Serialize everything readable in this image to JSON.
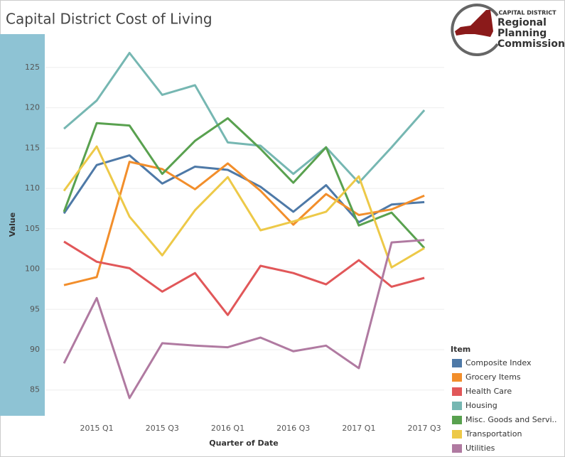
{
  "chart_data": {
    "type": "line",
    "title": "Capital District Cost of Living",
    "x_label": "Quarter of Date",
    "y_label": "Value",
    "categories": [
      null,
      "2015 Q1",
      null,
      "2015 Q3",
      null,
      "2016 Q1",
      null,
      "2016 Q3",
      null,
      "2017 Q1",
      null,
      "2017 Q3"
    ],
    "ylim": [
      81.8,
      129.4
    ],
    "yticks": [
      85,
      90,
      95,
      100,
      105,
      110,
      115,
      120,
      125
    ],
    "grid": true,
    "legend_title": "Item",
    "legend_position": "bottom-right",
    "series": [
      {
        "name": "Composite Index",
        "color": "#4e79a7",
        "values": [
          106.9,
          112.9,
          114.1,
          110.6,
          112.7,
          112.3,
          110.2,
          107.1,
          110.4,
          105.8,
          108.0,
          108.3
        ]
      },
      {
        "name": "Grocery Items",
        "color": "#f28e2b",
        "values": [
          98.0,
          99.0,
          113.3,
          112.4,
          109.9,
          113.1,
          109.7,
          105.5,
          109.3,
          106.7,
          107.4,
          109.1
        ]
      },
      {
        "name": "Health Care",
        "color": "#e15759",
        "values": [
          103.4,
          100.9,
          100.1,
          97.2,
          99.5,
          94.3,
          100.4,
          99.5,
          98.1,
          101.1,
          97.8,
          98.9
        ]
      },
      {
        "name": "Housing",
        "color": "#76b7b2",
        "values": [
          117.4,
          120.9,
          126.8,
          121.6,
          122.8,
          115.7,
          115.3,
          111.8,
          115.1,
          110.7,
          115.1,
          119.7
        ]
      },
      {
        "name": "Misc. Goods and Servi..",
        "color": "#59a14f",
        "values": [
          107.1,
          118.1,
          117.8,
          111.8,
          115.9,
          118.7,
          114.9,
          110.7,
          115.1,
          105.4,
          107.0,
          102.6
        ]
      },
      {
        "name": "Transportation",
        "color": "#edc948",
        "values": [
          109.7,
          115.2,
          106.5,
          101.7,
          107.3,
          111.4,
          104.8,
          105.9,
          107.1,
          111.5,
          100.2,
          102.6
        ]
      },
      {
        "name": "Utilities",
        "color": "#b07aa1",
        "values": [
          88.3,
          96.4,
          84.0,
          90.8,
          90.5,
          90.3,
          91.5,
          89.8,
          90.5,
          87.7,
          103.3,
          103.6
        ]
      }
    ]
  },
  "logo": {
    "line1": "CAPITAL DISTRICT",
    "line2": "Regional",
    "line3": "Planning",
    "line4": "Commission"
  }
}
